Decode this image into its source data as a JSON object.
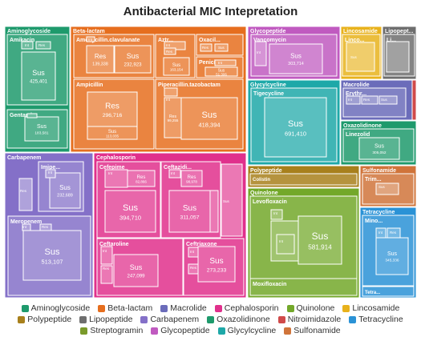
{
  "chart_data": {
    "type": "treemap",
    "title": "Antibacterial MIC Intepretation",
    "groups": [
      {
        "name": "Aminoglycoside",
        "color": "#1e9a6c"
      },
      {
        "name": "Beta-lactam",
        "color": "#e66e1e"
      },
      {
        "name": "Macrolide",
        "color": "#6b6cba"
      },
      {
        "name": "Cephalosporin",
        "color": "#e0308c"
      },
      {
        "name": "Quinolone",
        "color": "#73a82a"
      },
      {
        "name": "Lincosamide",
        "color": "#e8b21c"
      },
      {
        "name": "Polypeptide",
        "color": "#a8801c"
      },
      {
        "name": "Lipopeptide",
        "color": "#6e6e6e"
      },
      {
        "name": "Carbapenem",
        "color": "#8470c8"
      },
      {
        "name": "Oxazolidinone",
        "color": "#1e9a6c"
      },
      {
        "name": "Nitroimidazole",
        "color": "#d04a4a"
      },
      {
        "name": "Tetracycline",
        "color": "#2a92d6"
      },
      {
        "name": "Streptogramin",
        "color": "#7a9a2a"
      },
      {
        "name": "Glycopeptide",
        "color": "#c05ac0"
      },
      {
        "name": "Glycylcycline",
        "color": "#1ea8a8"
      },
      {
        "name": "Sulfonamide",
        "color": "#d0743a"
      }
    ],
    "nodes": [
      {
        "group": "Aminoglycoside",
        "drug": "Amikacin",
        "interpretation": "Sus",
        "value": 425401
      },
      {
        "group": "Aminoglycoside",
        "drug": "Gentami...",
        "interpretation": "Sus",
        "value": 183581
      },
      {
        "group": "Beta-lactam",
        "drug": "Amoxycillin.clavulanate",
        "interpretation": "Res",
        "value": 139338
      },
      {
        "group": "Beta-lactam",
        "drug": "Amoxycillin.clavulanate",
        "interpretation": "Sus",
        "value": 232923
      },
      {
        "group": "Beta-lactam",
        "drug": "Aztr...",
        "interpretation": "Sus",
        "value": 163154
      },
      {
        "group": "Beta-lactam",
        "drug": "Ampicillin",
        "interpretation": "Res",
        "value": 296716
      },
      {
        "group": "Beta-lactam",
        "drug": "Ampicillin",
        "interpretation": "Sus",
        "value": 113035
      },
      {
        "group": "Beta-lactam",
        "drug": "Piperacillin.tazobactam",
        "interpretation": "Res",
        "value": 99255
      },
      {
        "group": "Beta-lactam",
        "drug": "Piperacillin.tazobactam",
        "interpretation": "Sus",
        "value": 418394
      },
      {
        "group": "Beta-lactam",
        "drug": "Penicil...",
        "interpretation": "Sus",
        "value": 51306
      },
      {
        "group": "Glycopeptide",
        "drug": "Vancomycin",
        "interpretation": "Sus",
        "value": 303714
      },
      {
        "group": "Glycylcycline",
        "drug": "Tigecycline",
        "interpretation": "Sus",
        "value": 691410
      },
      {
        "group": "Oxazolidinone",
        "drug": "Linezolid",
        "interpretation": "Sus",
        "value": 305052
      },
      {
        "group": "Carbapenem",
        "drug": "Imipe...",
        "interpretation": "Sus",
        "value": 232689
      },
      {
        "group": "Carbapenem",
        "drug": "Meropenem",
        "interpretation": "Sus",
        "value": 513107
      },
      {
        "group": "Cephalosporin",
        "drug": "Cefepime",
        "interpretation": "Sus",
        "value": 394710
      },
      {
        "group": "Cephalosporin",
        "drug": "Cefepime",
        "interpretation": "Res",
        "value": 82866
      },
      {
        "group": "Cephalosporin",
        "drug": "Ceftazidi...",
        "interpretation": "Sus",
        "value": 311057
      },
      {
        "group": "Cephalosporin",
        "drug": "Ceftazidi...",
        "interpretation": "Res",
        "value": 98978
      },
      {
        "group": "Cephalosporin",
        "drug": "Ceftaroline",
        "interpretation": "Sus",
        "value": 247099
      },
      {
        "group": "Cephalosporin",
        "drug": "Ceftriaxone",
        "interpretation": "Sus",
        "value": 273233
      },
      {
        "group": "Quinolone",
        "drug": "Levofloxacin",
        "interpretation": "Sus",
        "value": 581914
      },
      {
        "group": "Quinolone",
        "drug": "Levofloxacin",
        "interpretation": "Res",
        "value": 225974
      },
      {
        "group": "Tetracycline",
        "drug": "Mino...",
        "interpretation": "Sus",
        "value": 345336
      }
    ]
  }
}
